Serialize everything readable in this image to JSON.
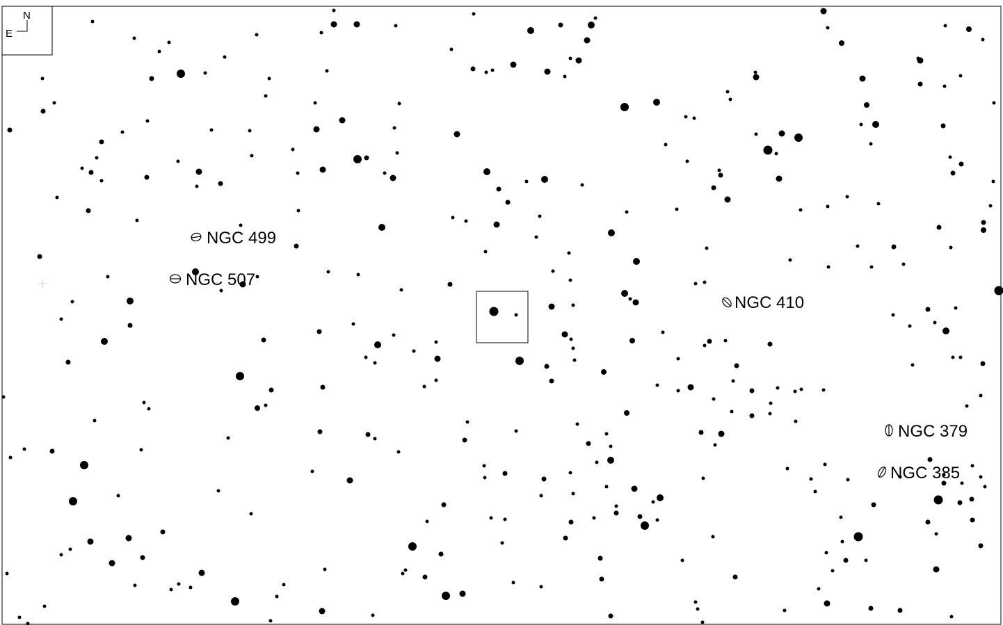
{
  "compass": {
    "north": "N",
    "east": "E"
  },
  "colors": {
    "ink": "#000000",
    "paper": "#ffffff",
    "faint": "#dddddd"
  },
  "objects": [
    {
      "name": "NGC 499",
      "symbol": "galaxy-icon"
    },
    {
      "name": "NGC 507",
      "symbol": "galaxy-icon"
    },
    {
      "name": "NGC 410",
      "symbol": "galaxy-icon"
    },
    {
      "name": "NGC 379",
      "symbol": "galaxy-icon"
    },
    {
      "name": "NGC 385",
      "symbol": "galaxy-icon"
    }
  ],
  "field_marker": {
    "symbol": "target-box-icon"
  }
}
